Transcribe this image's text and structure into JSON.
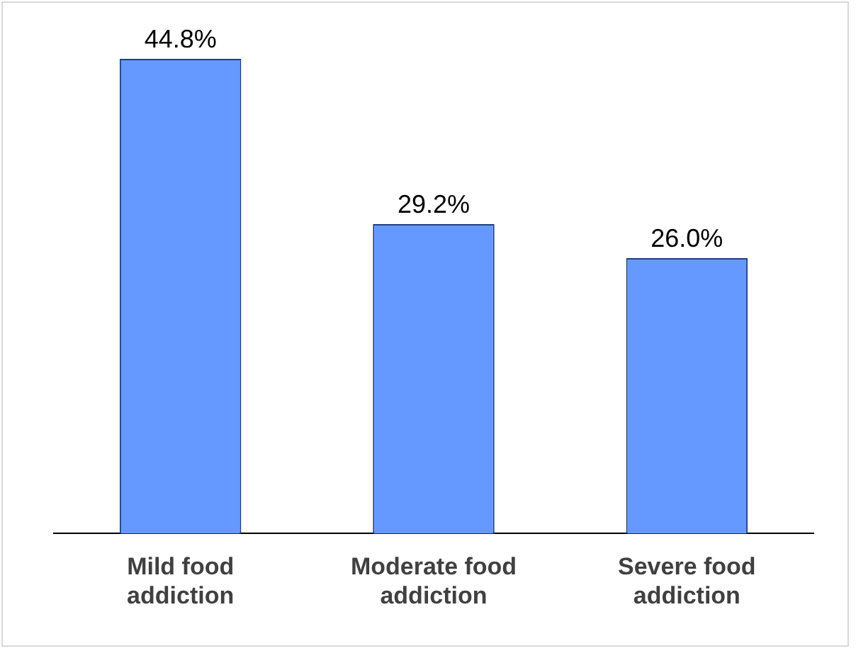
{
  "chart_data": {
    "type": "bar",
    "categories": [
      "Mild food addiction",
      "Moderate food addiction",
      "Severe food addiction"
    ],
    "values": [
      44.8,
      29.2,
      26.0
    ],
    "value_labels": [
      "44.8%",
      "29.2%",
      "26.0%"
    ],
    "color": "#6699ff",
    "grid": false,
    "legend": false
  }
}
